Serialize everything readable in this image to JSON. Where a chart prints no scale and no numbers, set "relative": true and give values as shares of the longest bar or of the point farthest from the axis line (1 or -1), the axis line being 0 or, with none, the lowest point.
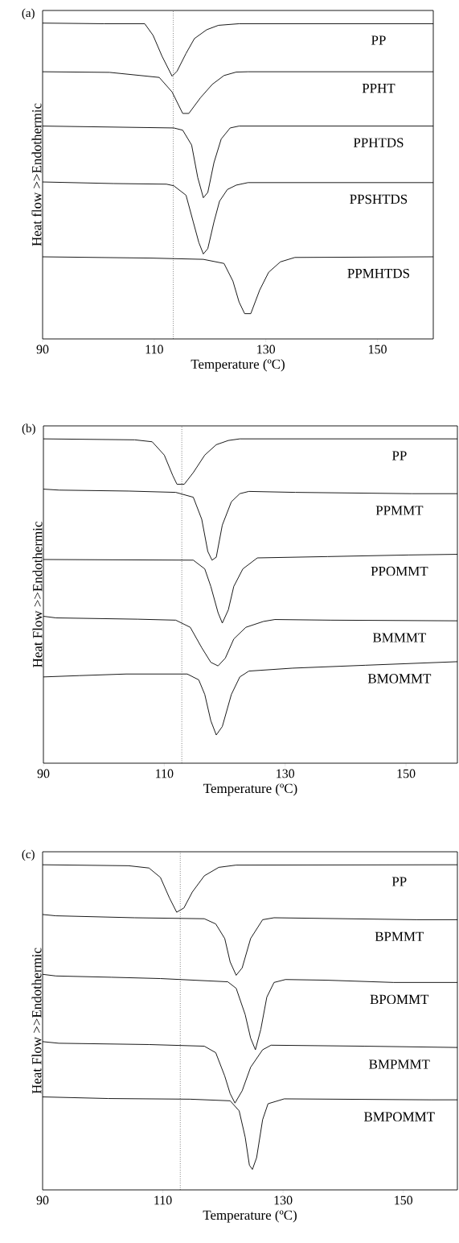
{
  "chart_data": [
    {
      "type": "line",
      "title": "(a)",
      "xlabel": "Temperature (ºC)",
      "ylabel": "Heat flow >>Endothermic",
      "relative": true,
      "xlim": [
        90,
        160
      ],
      "xticks": [
        90,
        110,
        130,
        150
      ],
      "ref_lines": [
        {
          "axis": "x",
          "value": 113.4,
          "line_style": "dotted"
        }
      ],
      "series": [
        {
          "name": "PP",
          "color": "#000000",
          "x": [
            90,
            101,
            108.3,
            109.8,
            111.4,
            113.2,
            114.1,
            115.7,
            117.2,
            119.4,
            121.5,
            125.2,
            160
          ],
          "values": [
            1.0,
            0.998,
            0.998,
            0.961,
            0.895,
            0.832,
            0.848,
            0.904,
            0.951,
            0.979,
            0.993,
            0.998,
            0.998
          ]
        },
        {
          "name": "PPHT",
          "color": "#000000",
          "x": [
            90,
            102,
            110.9,
            113.2,
            115.1,
            116.2,
            118.3,
            120.4,
            122.5,
            124.7,
            126.8,
            160
          ],
          "values": [
            0.846,
            0.844,
            0.828,
            0.782,
            0.714,
            0.714,
            0.764,
            0.806,
            0.834,
            0.845,
            0.846,
            0.846
          ]
        },
        {
          "name": "PPHTDS",
          "color": "#000000",
          "x": [
            90,
            113.5,
            115.1,
            116.7,
            117.8,
            118.8,
            119.6,
            120.7,
            122,
            123.6,
            125.2,
            160
          ],
          "values": [
            0.674,
            0.668,
            0.661,
            0.614,
            0.511,
            0.447,
            0.464,
            0.558,
            0.633,
            0.668,
            0.674,
            0.674
          ]
        },
        {
          "name": "PPSHTDS",
          "color": "#000000",
          "x": [
            90,
            102.7,
            112.2,
            113.5,
            115.7,
            117,
            118,
            118.8,
            119.6,
            120.7,
            121.7,
            123.1,
            124.7,
            126.8,
            160
          ],
          "values": [
            0.497,
            0.492,
            0.49,
            0.485,
            0.455,
            0.37,
            0.305,
            0.269,
            0.286,
            0.37,
            0.436,
            0.473,
            0.487,
            0.495,
            0.495
          ]
        },
        {
          "name": "PPMHTDS",
          "color": "#000000",
          "x": [
            90,
            109.3,
            118.8,
            122.5,
            124.1,
            125.2,
            126.2,
            127.3,
            128.9,
            130.5,
            132.6,
            135.2,
            160
          ],
          "values": [
            0.26,
            0.256,
            0.252,
            0.239,
            0.183,
            0.117,
            0.08,
            0.08,
            0.155,
            0.211,
            0.244,
            0.258,
            0.26
          ]
        }
      ]
    },
    {
      "type": "line",
      "title": "(b)",
      "xlabel": "Temperature (ºC)",
      "ylabel": "Heat Flow >>Endothermic",
      "relative": true,
      "xlim": [
        90,
        158.5
      ],
      "xticks": [
        90,
        110,
        130,
        150
      ],
      "ref_lines": [
        {
          "axis": "x",
          "value": 112.9,
          "line_style": "dotted"
        }
      ],
      "series": [
        {
          "name": "PP",
          "color": "#000000",
          "x": [
            90,
            105.1,
            108,
            110,
            111.4,
            112.1,
            113.3,
            114.8,
            116.7,
            118.6,
            120.6,
            122.5,
            158.5
          ],
          "values": [
            1.0,
            0.997,
            0.991,
            0.95,
            0.887,
            0.86,
            0.86,
            0.896,
            0.95,
            0.982,
            0.995,
            1.0,
            1.0
          ]
        },
        {
          "name": "PPMMT",
          "color": "#000000",
          "x": [
            90,
            92.6,
            104.2,
            111.9,
            114.8,
            116.2,
            117.2,
            117.9,
            118.6,
            119.6,
            121.1,
            122.5,
            124,
            131.7,
            151,
            158.5
          ],
          "values": [
            0.845,
            0.842,
            0.839,
            0.835,
            0.82,
            0.752,
            0.653,
            0.626,
            0.635,
            0.734,
            0.806,
            0.831,
            0.838,
            0.835,
            0.831,
            0.831
          ]
        },
        {
          "name": "PPOMMT",
          "color": "#000000",
          "x": [
            90,
            114.8,
            116.7,
            117.7,
            118.9,
            119.6,
            120.6,
            121.5,
            123,
            125.4,
            137,
            150.5,
            158.5
          ],
          "values": [
            0.628,
            0.626,
            0.599,
            0.545,
            0.464,
            0.432,
            0.473,
            0.545,
            0.599,
            0.633,
            0.637,
            0.642,
            0.644
          ]
        },
        {
          "name": "BMMMT",
          "color": "#000000",
          "x": [
            90,
            92.1,
            105.6,
            111.9,
            114.3,
            116.2,
            117.7,
            118.9,
            120.1,
            121.5,
            123.5,
            126.4,
            128.3,
            137.5,
            158.5
          ],
          "values": [
            0.453,
            0.448,
            0.444,
            0.441,
            0.419,
            0.356,
            0.311,
            0.3,
            0.324,
            0.383,
            0.419,
            0.437,
            0.443,
            0.441,
            0.439
          ]
        },
        {
          "name": "BMOMMT",
          "color": "#000000",
          "x": [
            90,
            95.9,
            103.7,
            113.8,
            115.7,
            116.7,
            117.7,
            118.6,
            119.6,
            121.1,
            122.5,
            124,
            131.2,
            143.3,
            158.5
          ],
          "values": [
            0.266,
            0.27,
            0.275,
            0.275,
            0.257,
            0.212,
            0.131,
            0.087,
            0.113,
            0.212,
            0.266,
            0.284,
            0.293,
            0.302,
            0.313
          ]
        }
      ]
    },
    {
      "type": "line",
      "title": "(c)",
      "xlabel": "Temperature (ºC)",
      "ylabel": "Heat Flow >>Endothermic",
      "relative": true,
      "xlim": [
        90,
        159
      ],
      "xticks": [
        90,
        110,
        130,
        150
      ],
      "ref_lines": [
        {
          "axis": "x",
          "value": 112.9,
          "line_style": "dotted"
        }
      ],
      "series": [
        {
          "name": "PP",
          "color": "#000000",
          "x": [
            90,
            104.3,
            107.7,
            109.6,
            111.1,
            112.3,
            113.5,
            114.9,
            116.9,
            119.3,
            122.2,
            159
          ],
          "values": [
            1.0,
            0.997,
            0.99,
            0.961,
            0.898,
            0.854,
            0.867,
            0.916,
            0.966,
            0.992,
            0.999,
            1.0
          ]
        },
        {
          "name": "BPMMT",
          "color": "#000000",
          "x": [
            90,
            92.2,
            105.3,
            116.9,
            118.8,
            120.3,
            121.2,
            122.2,
            123.2,
            124.6,
            126.6,
            128.5,
            152.2,
            159
          ],
          "values": [
            0.847,
            0.843,
            0.837,
            0.834,
            0.818,
            0.773,
            0.701,
            0.66,
            0.683,
            0.773,
            0.831,
            0.837,
            0.831,
            0.831
          ]
        },
        {
          "name": "BPOMMT",
          "color": "#000000",
          "x": [
            90,
            92.2,
            101.4,
            109.6,
            120.8,
            122.2,
            123.7,
            124.6,
            125.4,
            126.3,
            127.3,
            128.5,
            130.4,
            137.2,
            148.4,
            159
          ],
          "values": [
            0.663,
            0.658,
            0.654,
            0.65,
            0.64,
            0.62,
            0.539,
            0.467,
            0.431,
            0.494,
            0.593,
            0.638,
            0.647,
            0.645,
            0.638,
            0.638
          ]
        },
        {
          "name": "BMPMMT",
          "color": "#000000",
          "x": [
            90,
            92.7,
            107.7,
            116.9,
            118.8,
            120.3,
            121.2,
            122,
            123.2,
            124.6,
            126.6,
            128,
            143.5,
            159
          ],
          "values": [
            0.456,
            0.451,
            0.447,
            0.442,
            0.422,
            0.35,
            0.296,
            0.267,
            0.305,
            0.377,
            0.431,
            0.445,
            0.442,
            0.438
          ]
        },
        {
          "name": "BMPOMMT",
          "color": "#000000",
          "x": [
            90,
            100.9,
            114.5,
            121.2,
            122.7,
            123.7,
            124.4,
            124.9,
            125.6,
            126.6,
            127.5,
            130.2,
            154.6,
            159
          ],
          "values": [
            0.286,
            0.281,
            0.279,
            0.274,
            0.243,
            0.162,
            0.076,
            0.063,
            0.099,
            0.216,
            0.265,
            0.28,
            0.277,
            0.277
          ]
        }
      ]
    }
  ]
}
